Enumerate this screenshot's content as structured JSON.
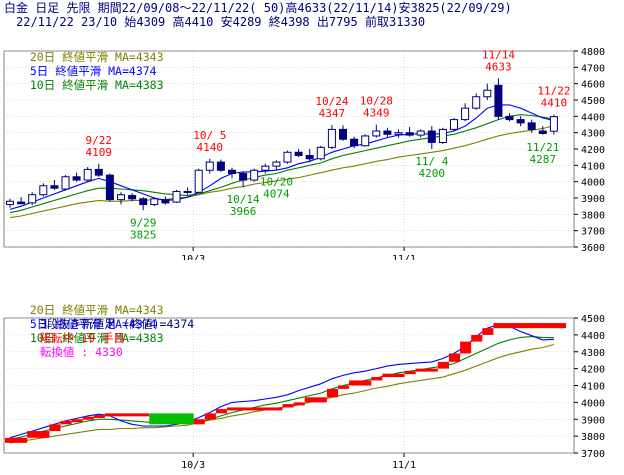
{
  "header": {
    "line1": "白金 日足 先限 期間22/09/08～22/11/22( 50)高4633(22/11/14)安3825(22/09/29)",
    "line2": "22/11/22 23/10 始4309 高4410 安4289 終4398 出7795 前取31330"
  },
  "colors": {
    "header": "#000080",
    "ma20": "#808000",
    "ma5": "#0000ff",
    "ma10": "#008000",
    "candle_up_body": "#ffffff",
    "candle_down_body": "#000080",
    "candle_edge": "#000080",
    "annot_high": "#ff0000",
    "annot_low": "#00a000",
    "kagi_up": "#ff0000",
    "kagi_down": "#00c000",
    "break_label": "#ff00ff",
    "grid": "#c0c0c0"
  },
  "top_legend": {
    "ma20": "20日 終値平滑 MA=4343",
    "ma5": "5日 終値平滑 MA=4374",
    "ma10": "10日 終値平滑 MA=4383"
  },
  "bottom_legend": {
    "ma20": "20日 終値平滑 MA=4343",
    "ma5": "5日 終値平滑 MA=4374",
    "ma10": "10日 終値平滑 MA=4383",
    "three_line": "3段抜き新値足 (終値)=4374",
    "status": "陽転中 19 手目",
    "reversal": "転換値 : 4330"
  },
  "chart_data": [
    {
      "type": "candlestick",
      "ylim": [
        3600,
        4800
      ],
      "y_ticks": [
        "4800",
        "4700",
        "4600",
        "4500",
        "4400",
        "4300",
        "4200",
        "4100",
        "4000",
        "3900",
        "3800",
        "3700",
        "3600"
      ],
      "x_ticks": [
        "10/3",
        "11/1"
      ],
      "candles": [
        {
          "o": 3860,
          "h": 3895,
          "l": 3840,
          "c": 3880
        },
        {
          "o": 3875,
          "h": 3905,
          "l": 3860,
          "c": 3865
        },
        {
          "o": 3870,
          "h": 3935,
          "l": 3855,
          "c": 3920
        },
        {
          "o": 3920,
          "h": 3990,
          "l": 3910,
          "c": 3975
        },
        {
          "o": 3975,
          "h": 4010,
          "l": 3950,
          "c": 3960
        },
        {
          "o": 3955,
          "h": 4040,
          "l": 3945,
          "c": 4030
        },
        {
          "o": 4030,
          "h": 4055,
          "l": 4000,
          "c": 4010
        },
        {
          "o": 4010,
          "h": 4090,
          "l": 3995,
          "c": 4075
        },
        {
          "o": 4075,
          "h": 4109,
          "l": 4030,
          "c": 4040
        },
        {
          "o": 4040,
          "h": 4050,
          "l": 3880,
          "c": 3890
        },
        {
          "o": 3890,
          "h": 3935,
          "l": 3860,
          "c": 3920
        },
        {
          "o": 3915,
          "h": 3930,
          "l": 3880,
          "c": 3895
        },
        {
          "o": 3895,
          "h": 3905,
          "l": 3825,
          "c": 3860
        },
        {
          "o": 3860,
          "h": 3905,
          "l": 3850,
          "c": 3895
        },
        {
          "o": 3890,
          "h": 3910,
          "l": 3860,
          "c": 3870
        },
        {
          "o": 3875,
          "h": 3950,
          "l": 3870,
          "c": 3940
        },
        {
          "o": 3940,
          "h": 3965,
          "l": 3920,
          "c": 3935
        },
        {
          "o": 3935,
          "h": 4080,
          "l": 3930,
          "c": 4070
        },
        {
          "o": 4070,
          "h": 4140,
          "l": 4050,
          "c": 4120
        },
        {
          "o": 4120,
          "h": 4135,
          "l": 4060,
          "c": 4070
        },
        {
          "o": 4070,
          "h": 4085,
          "l": 4020,
          "c": 4050
        },
        {
          "o": 4050,
          "h": 4060,
          "l": 3966,
          "c": 4010
        },
        {
          "o": 4010,
          "h": 4080,
          "l": 4000,
          "c": 4070
        },
        {
          "o": 4070,
          "h": 4110,
          "l": 4050,
          "c": 4095
        },
        {
          "o": 4095,
          "h": 4130,
          "l": 4074,
          "c": 4120
        },
        {
          "o": 4120,
          "h": 4190,
          "l": 4110,
          "c": 4180
        },
        {
          "o": 4180,
          "h": 4200,
          "l": 4150,
          "c": 4160
        },
        {
          "o": 4160,
          "h": 4200,
          "l": 4120,
          "c": 4140
        },
        {
          "o": 4140,
          "h": 4220,
          "l": 4130,
          "c": 4210
        },
        {
          "o": 4210,
          "h": 4347,
          "l": 4200,
          "c": 4320
        },
        {
          "o": 4320,
          "h": 4345,
          "l": 4250,
          "c": 4260
        },
        {
          "o": 4260,
          "h": 4275,
          "l": 4205,
          "c": 4220
        },
        {
          "o": 4220,
          "h": 4290,
          "l": 4215,
          "c": 4280
        },
        {
          "o": 4280,
          "h": 4349,
          "l": 4270,
          "c": 4310
        },
        {
          "o": 4310,
          "h": 4330,
          "l": 4270,
          "c": 4290
        },
        {
          "o": 4290,
          "h": 4320,
          "l": 4270,
          "c": 4300
        },
        {
          "o": 4300,
          "h": 4335,
          "l": 4275,
          "c": 4285
        },
        {
          "o": 4285,
          "h": 4320,
          "l": 4270,
          "c": 4310
        },
        {
          "o": 4310,
          "h": 4340,
          "l": 4200,
          "c": 4240
        },
        {
          "o": 4240,
          "h": 4330,
          "l": 4230,
          "c": 4320
        },
        {
          "o": 4320,
          "h": 4390,
          "l": 4310,
          "c": 4380
        },
        {
          "o": 4380,
          "h": 4480,
          "l": 4370,
          "c": 4450
        },
        {
          "o": 4450,
          "h": 4540,
          "l": 4440,
          "c": 4520
        },
        {
          "o": 4520,
          "h": 4600,
          "l": 4500,
          "c": 4560
        },
        {
          "o": 4590,
          "h": 4633,
          "l": 4380,
          "c": 4400
        },
        {
          "o": 4400,
          "h": 4420,
          "l": 4370,
          "c": 4380
        },
        {
          "o": 4380,
          "h": 4400,
          "l": 4340,
          "c": 4360
        },
        {
          "o": 4360,
          "h": 4380,
          "l": 4300,
          "c": 4320
        },
        {
          "o": 4310,
          "h": 4340,
          "l": 4287,
          "c": 4295
        },
        {
          "o": 4309,
          "h": 4410,
          "l": 4289,
          "c": 4398
        }
      ],
      "ma20": [
        3780,
        3790,
        3805,
        3820,
        3835,
        3850,
        3865,
        3875,
        3885,
        3880,
        3880,
        3885,
        3885,
        3890,
        3890,
        3900,
        3905,
        3920,
        3935,
        3945,
        3960,
        3970,
        3985,
        3995,
        4005,
        4015,
        4025,
        4040,
        4055,
        4070,
        4085,
        4095,
        4110,
        4125,
        4135,
        4150,
        4160,
        4170,
        4180,
        4190,
        4205,
        4220,
        4240,
        4260,
        4280,
        4295,
        4305,
        4315,
        4325,
        4343
      ],
      "ma5": [
        3830,
        3850,
        3875,
        3900,
        3925,
        3950,
        3975,
        4000,
        4020,
        4000,
        3975,
        3950,
        3925,
        3900,
        3885,
        3890,
        3905,
        3935,
        3975,
        4020,
        4050,
        4060,
        4060,
        4065,
        4070,
        4085,
        4110,
        4125,
        4150,
        4180,
        4200,
        4220,
        4230,
        4250,
        4270,
        4285,
        4290,
        4295,
        4290,
        4295,
        4310,
        4340,
        4390,
        4450,
        4470,
        4470,
        4450,
        4420,
        4390,
        4374
      ],
      "ma10": [
        3810,
        3825,
        3845,
        3865,
        3885,
        3905,
        3925,
        3945,
        3960,
        3960,
        3955,
        3950,
        3945,
        3935,
        3925,
        3920,
        3915,
        3925,
        3945,
        3965,
        3990,
        4010,
        4025,
        4040,
        4050,
        4070,
        4085,
        4100,
        4115,
        4140,
        4160,
        4175,
        4190,
        4205,
        4220,
        4235,
        4250,
        4260,
        4270,
        4280,
        4290,
        4310,
        4330,
        4355,
        4380,
        4400,
        4410,
        4405,
        4395,
        4383
      ],
      "annotations": [
        {
          "i": 8,
          "kind": "high",
          "date": "9/22",
          "value": "4109"
        },
        {
          "i": 12,
          "kind": "low",
          "date": "9/29",
          "value": "3825"
        },
        {
          "i": 18,
          "kind": "high",
          "date": "10/ 5",
          "value": "4140"
        },
        {
          "i": 21,
          "kind": "low",
          "date": "10/14",
          "value": "3966"
        },
        {
          "i": 24,
          "kind": "low",
          "date": "10/20",
          "value": "4074"
        },
        {
          "i": 29,
          "kind": "high",
          "date": "10/24",
          "value": "4347"
        },
        {
          "i": 33,
          "kind": "high",
          "date": "10/28",
          "value": "4349"
        },
        {
          "i": 38,
          "kind": "low",
          "date": "11/ 4",
          "value": "4200"
        },
        {
          "i": 44,
          "kind": "high",
          "date": "11/14",
          "value": "4633"
        },
        {
          "i": 48,
          "kind": "low",
          "date": "11/21",
          "value": "4287"
        },
        {
          "i": 49,
          "kind": "high",
          "date": "11/22",
          "value": "4410"
        }
      ]
    },
    {
      "type": "three_line_break",
      "ylim": [
        3700,
        4500
      ],
      "y_ticks": [
        "4500",
        "4400",
        "4300",
        "4200",
        "4100",
        "4000",
        "3900",
        "3800",
        "3700"
      ],
      "x_ticks": [
        "10/3",
        "11/1"
      ],
      "bricks": [
        {
          "i": 0,
          "lo": 3760,
          "hi": 3790,
          "dir": "up"
        },
        {
          "i": 2,
          "lo": 3790,
          "hi": 3830,
          "dir": "up"
        },
        {
          "i": 4,
          "lo": 3830,
          "hi": 3870,
          "dir": "up"
        },
        {
          "i": 5,
          "lo": 3870,
          "hi": 3890,
          "dir": "up"
        },
        {
          "i": 6,
          "lo": 3890,
          "hi": 3900,
          "dir": "up"
        },
        {
          "i": 7,
          "lo": 3900,
          "hi": 3915,
          "dir": "up"
        },
        {
          "i": 8,
          "lo": 3915,
          "hi": 3925,
          "dir": "up"
        },
        {
          "i": 9,
          "lo": 3925,
          "hi": 3935,
          "dir": "up"
        },
        {
          "i": 13,
          "lo": 3870,
          "hi": 3935,
          "dir": "down"
        },
        {
          "i": 17,
          "lo": 3870,
          "hi": 3900,
          "dir": "up"
        },
        {
          "i": 18,
          "lo": 3900,
          "hi": 3935,
          "dir": "up"
        },
        {
          "i": 19,
          "lo": 3935,
          "hi": 3960,
          "dir": "up"
        },
        {
          "i": 20,
          "lo": 3960,
          "hi": 3970,
          "dir": "up"
        },
        {
          "i": 25,
          "lo": 3970,
          "hi": 3990,
          "dir": "up"
        },
        {
          "i": 26,
          "lo": 3990,
          "hi": 4000,
          "dir": "up"
        },
        {
          "i": 27,
          "lo": 4000,
          "hi": 4030,
          "dir": "up"
        },
        {
          "i": 29,
          "lo": 4030,
          "hi": 4080,
          "dir": "up"
        },
        {
          "i": 30,
          "lo": 4080,
          "hi": 4100,
          "dir": "up"
        },
        {
          "i": 31,
          "lo": 4100,
          "hi": 4130,
          "dir": "up"
        },
        {
          "i": 33,
          "lo": 4130,
          "hi": 4150,
          "dir": "up"
        },
        {
          "i": 34,
          "lo": 4150,
          "hi": 4170,
          "dir": "up"
        },
        {
          "i": 36,
          "lo": 4170,
          "hi": 4185,
          "dir": "up"
        },
        {
          "i": 37,
          "lo": 4185,
          "hi": 4200,
          "dir": "up"
        },
        {
          "i": 39,
          "lo": 4200,
          "hi": 4240,
          "dir": "up"
        },
        {
          "i": 40,
          "lo": 4240,
          "hi": 4290,
          "dir": "up"
        },
        {
          "i": 41,
          "lo": 4290,
          "hi": 4360,
          "dir": "up"
        },
        {
          "i": 42,
          "lo": 4360,
          "hi": 4400,
          "dir": "up"
        },
        {
          "i": 43,
          "lo": 4400,
          "hi": 4440,
          "dir": "up"
        },
        {
          "i": 44,
          "lo": 4440,
          "hi": 4470,
          "dir": "up"
        }
      ],
      "ma20": [
        3760,
        3770,
        3780,
        3790,
        3800,
        3810,
        3820,
        3830,
        3840,
        3840,
        3845,
        3845,
        3850,
        3850,
        3855,
        3860,
        3865,
        3880,
        3895,
        3905,
        3920,
        3930,
        3945,
        3955,
        3965,
        3975,
        3985,
        4000,
        4015,
        4030,
        4045,
        4055,
        4070,
        4085,
        4095,
        4110,
        4120,
        4130,
        4140,
        4150,
        4170,
        4190,
        4215,
        4240,
        4265,
        4285,
        4300,
        4315,
        4325,
        4343
      ],
      "ma5": [
        3790,
        3810,
        3830,
        3850,
        3870,
        3890,
        3905,
        3920,
        3930,
        3920,
        3890,
        3870,
        3860,
        3860,
        3860,
        3870,
        3885,
        3910,
        3940,
        3975,
        4000,
        4005,
        4010,
        4020,
        4030,
        4045,
        4070,
        4090,
        4110,
        4140,
        4160,
        4175,
        4185,
        4200,
        4215,
        4225,
        4230,
        4235,
        4240,
        4260,
        4290,
        4330,
        4390,
        4440,
        4460,
        4450,
        4420,
        4395,
        4370,
        4374
      ],
      "ma10": [
        3780,
        3795,
        3810,
        3830,
        3845,
        3860,
        3875,
        3890,
        3900,
        3900,
        3895,
        3890,
        3885,
        3880,
        3875,
        3875,
        3875,
        3885,
        3900,
        3920,
        3940,
        3955,
        3970,
        3985,
        3995,
        4010,
        4025,
        4040,
        4055,
        4080,
        4100,
        4115,
        4130,
        4145,
        4160,
        4175,
        4185,
        4195,
        4205,
        4215,
        4230,
        4260,
        4290,
        4320,
        4350,
        4370,
        4385,
        4390,
        4385,
        4383
      ]
    }
  ]
}
